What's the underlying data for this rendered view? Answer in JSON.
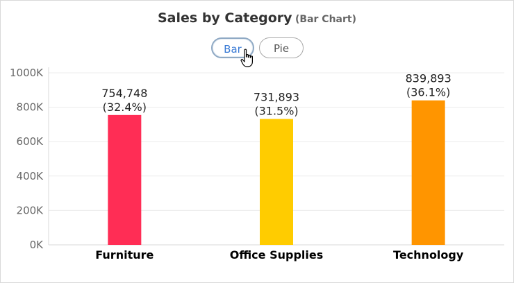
{
  "title": "Sales by Category",
  "subtitle": "(Bar Chart)",
  "toggles": {
    "bar_label": "Bar",
    "pie_label": "Pie",
    "active": "Bar"
  },
  "chart_data": {
    "type": "bar",
    "categories": [
      "Furniture",
      "Office Supplies",
      "Technology"
    ],
    "values": [
      754748,
      731893,
      839893
    ],
    "value_labels": [
      "754,748",
      "731,893",
      "839,893"
    ],
    "percent_labels": [
      "(32.4%)",
      "(31.5%)",
      "(36.1%)"
    ],
    "colors": [
      "#ff2d55",
      "#ffcc00",
      "#ff9500"
    ],
    "y_ticks": [
      "0K",
      "200K",
      "400K",
      "600K",
      "800K",
      "1000K"
    ],
    "ylim": [
      0,
      1000000
    ],
    "grid": true,
    "xlabel": "",
    "ylabel": ""
  }
}
